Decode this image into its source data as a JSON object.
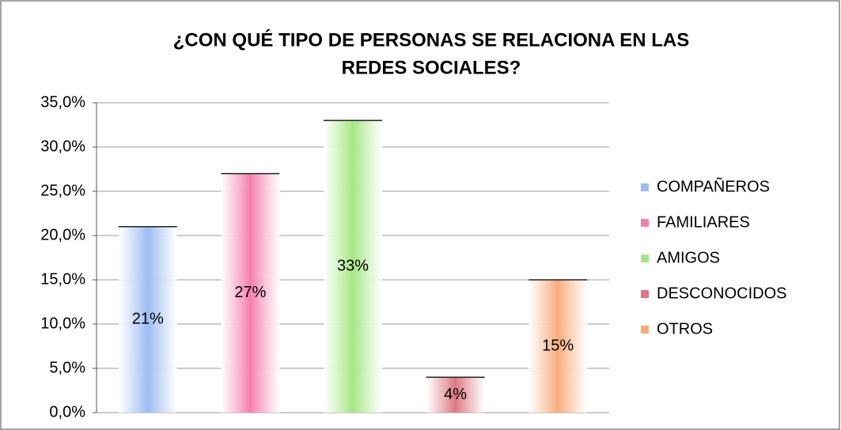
{
  "chart_data": {
    "type": "bar",
    "title": [
      "¿CON QUÉ TIPO DE PERSONAS SE RELACIONA EN LAS",
      "REDES SOCIALES?"
    ],
    "series": [
      {
        "name": "COMPAÑEROS",
        "color": "#9dbcf3",
        "values": [
          21
        ],
        "value_labels": [
          "21%"
        ]
      },
      {
        "name": "FAMILIARES",
        "color": "#f57fae",
        "values": [
          27
        ],
        "value_labels": [
          "27%"
        ]
      },
      {
        "name": "AMIGOS",
        "color": "#a6e684",
        "values": [
          33
        ],
        "value_labels": [
          "33%"
        ]
      },
      {
        "name": "DESCONOCIDOS",
        "color": "#dc7880",
        "values": [
          4
        ],
        "value_labels": [
          "4%"
        ]
      },
      {
        "name": "OTROS",
        "color": "#f8ac7c",
        "values": [
          15
        ],
        "value_labels": [
          "15%"
        ]
      }
    ],
    "ylim": [
      0,
      35
    ],
    "yticks": [
      {
        "value": 0,
        "label": "0,0%"
      },
      {
        "value": 5,
        "label": "5,0%"
      },
      {
        "value": 10,
        "label": "10,0%"
      },
      {
        "value": 15,
        "label": "15,0%"
      },
      {
        "value": 20,
        "label": "20,0%"
      },
      {
        "value": 25,
        "label": "25,0%"
      },
      {
        "value": 30,
        "label": "30,0%"
      },
      {
        "value": 35,
        "label": "35,0%"
      }
    ],
    "grid": true,
    "legend": "right"
  }
}
